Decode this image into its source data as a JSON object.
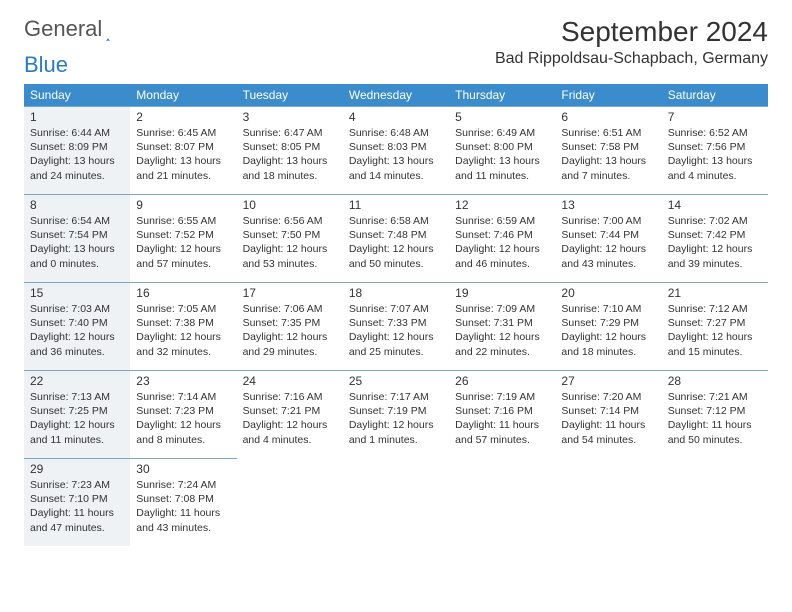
{
  "brand": {
    "part1": "General",
    "part2": "Blue"
  },
  "title": "September 2024",
  "location": "Bad Rippoldsau-Schapbach, Germany",
  "colors": {
    "header_bg": "#3b8ccc",
    "header_text": "#ffffff",
    "cell_border": "#7ca9c6",
    "shaded_bg": "#eef2f5",
    "text": "#333333",
    "brand_blue": "#2b7bbf"
  },
  "day_headers": [
    "Sunday",
    "Monday",
    "Tuesday",
    "Wednesday",
    "Thursday",
    "Friday",
    "Saturday"
  ],
  "shaded_days": [
    1,
    8,
    15,
    22,
    29
  ],
  "days": [
    {
      "n": 1,
      "sunrise": "6:44 AM",
      "sunset": "8:09 PM",
      "dl_h": 13,
      "dl_m": 24
    },
    {
      "n": 2,
      "sunrise": "6:45 AM",
      "sunset": "8:07 PM",
      "dl_h": 13,
      "dl_m": 21
    },
    {
      "n": 3,
      "sunrise": "6:47 AM",
      "sunset": "8:05 PM",
      "dl_h": 13,
      "dl_m": 18
    },
    {
      "n": 4,
      "sunrise": "6:48 AM",
      "sunset": "8:03 PM",
      "dl_h": 13,
      "dl_m": 14
    },
    {
      "n": 5,
      "sunrise": "6:49 AM",
      "sunset": "8:00 PM",
      "dl_h": 13,
      "dl_m": 11
    },
    {
      "n": 6,
      "sunrise": "6:51 AM",
      "sunset": "7:58 PM",
      "dl_h": 13,
      "dl_m": 7
    },
    {
      "n": 7,
      "sunrise": "6:52 AM",
      "sunset": "7:56 PM",
      "dl_h": 13,
      "dl_m": 4
    },
    {
      "n": 8,
      "sunrise": "6:54 AM",
      "sunset": "7:54 PM",
      "dl_h": 13,
      "dl_m": 0
    },
    {
      "n": 9,
      "sunrise": "6:55 AM",
      "sunset": "7:52 PM",
      "dl_h": 12,
      "dl_m": 57
    },
    {
      "n": 10,
      "sunrise": "6:56 AM",
      "sunset": "7:50 PM",
      "dl_h": 12,
      "dl_m": 53
    },
    {
      "n": 11,
      "sunrise": "6:58 AM",
      "sunset": "7:48 PM",
      "dl_h": 12,
      "dl_m": 50
    },
    {
      "n": 12,
      "sunrise": "6:59 AM",
      "sunset": "7:46 PM",
      "dl_h": 12,
      "dl_m": 46
    },
    {
      "n": 13,
      "sunrise": "7:00 AM",
      "sunset": "7:44 PM",
      "dl_h": 12,
      "dl_m": 43
    },
    {
      "n": 14,
      "sunrise": "7:02 AM",
      "sunset": "7:42 PM",
      "dl_h": 12,
      "dl_m": 39
    },
    {
      "n": 15,
      "sunrise": "7:03 AM",
      "sunset": "7:40 PM",
      "dl_h": 12,
      "dl_m": 36
    },
    {
      "n": 16,
      "sunrise": "7:05 AM",
      "sunset": "7:38 PM",
      "dl_h": 12,
      "dl_m": 32
    },
    {
      "n": 17,
      "sunrise": "7:06 AM",
      "sunset": "7:35 PM",
      "dl_h": 12,
      "dl_m": 29
    },
    {
      "n": 18,
      "sunrise": "7:07 AM",
      "sunset": "7:33 PM",
      "dl_h": 12,
      "dl_m": 25
    },
    {
      "n": 19,
      "sunrise": "7:09 AM",
      "sunset": "7:31 PM",
      "dl_h": 12,
      "dl_m": 22
    },
    {
      "n": 20,
      "sunrise": "7:10 AM",
      "sunset": "7:29 PM",
      "dl_h": 12,
      "dl_m": 18
    },
    {
      "n": 21,
      "sunrise": "7:12 AM",
      "sunset": "7:27 PM",
      "dl_h": 12,
      "dl_m": 15
    },
    {
      "n": 22,
      "sunrise": "7:13 AM",
      "sunset": "7:25 PM",
      "dl_h": 12,
      "dl_m": 11
    },
    {
      "n": 23,
      "sunrise": "7:14 AM",
      "sunset": "7:23 PM",
      "dl_h": 12,
      "dl_m": 8
    },
    {
      "n": 24,
      "sunrise": "7:16 AM",
      "sunset": "7:21 PM",
      "dl_h": 12,
      "dl_m": 4
    },
    {
      "n": 25,
      "sunrise": "7:17 AM",
      "sunset": "7:19 PM",
      "dl_h": 12,
      "dl_m": 1
    },
    {
      "n": 26,
      "sunrise": "7:19 AM",
      "sunset": "7:16 PM",
      "dl_h": 11,
      "dl_m": 57
    },
    {
      "n": 27,
      "sunrise": "7:20 AM",
      "sunset": "7:14 PM",
      "dl_h": 11,
      "dl_m": 54
    },
    {
      "n": 28,
      "sunrise": "7:21 AM",
      "sunset": "7:12 PM",
      "dl_h": 11,
      "dl_m": 50
    },
    {
      "n": 29,
      "sunrise": "7:23 AM",
      "sunset": "7:10 PM",
      "dl_h": 11,
      "dl_m": 47
    },
    {
      "n": 30,
      "sunrise": "7:24 AM",
      "sunset": "7:08 PM",
      "dl_h": 11,
      "dl_m": 43
    }
  ]
}
